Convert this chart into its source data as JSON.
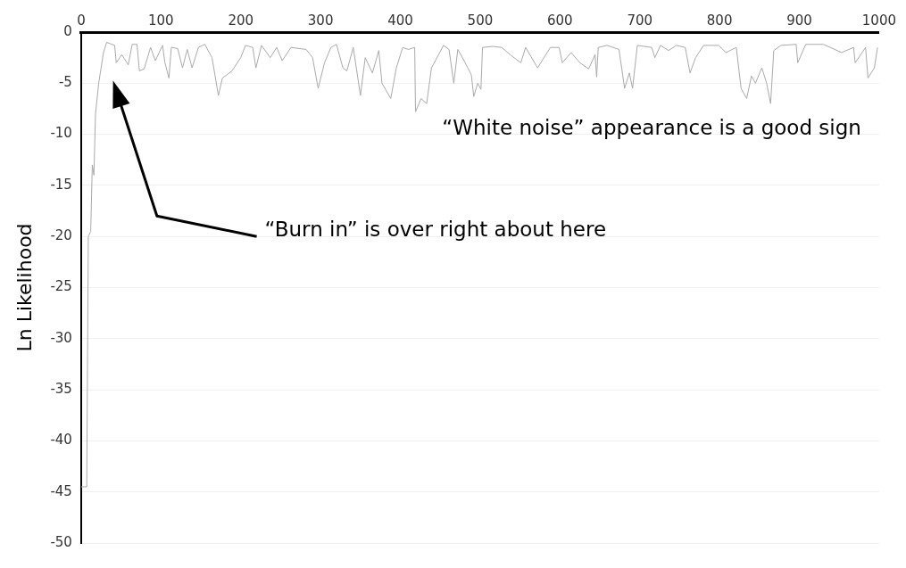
{
  "chart_data": {
    "type": "line",
    "ylabel": "Ln Likelihood",
    "x": [
      0,
      7,
      9,
      12,
      14,
      16,
      18,
      22,
      25,
      28,
      32,
      42,
      44,
      51,
      59,
      64,
      70,
      73,
      79,
      87,
      93,
      102,
      105,
      110,
      113,
      121,
      127,
      133,
      139,
      147,
      155,
      164,
      172,
      177,
      189,
      200,
      206,
      215,
      219,
      226,
      237,
      245,
      252,
      263,
      282,
      290,
      297,
      305,
      313,
      320,
      328,
      333,
      341,
      350,
      356,
      365,
      373,
      377,
      388,
      395,
      403,
      410,
      418,
      419,
      426,
      433,
      439,
      446,
      454,
      461,
      467,
      472,
      480,
      489,
      492,
      497,
      501,
      503,
      516,
      527,
      539,
      551,
      557,
      572,
      580,
      588,
      599,
      603,
      614,
      625,
      636,
      644,
      646,
      648,
      659,
      674,
      681,
      687,
      691,
      697,
      715,
      719,
      726,
      736,
      746,
      757,
      763,
      770,
      780,
      799,
      808,
      821,
      827,
      834,
      840,
      845,
      853,
      859,
      864,
      868,
      877,
      896,
      898,
      908,
      930,
      953,
      968,
      970,
      983,
      986,
      994,
      998
    ],
    "series": [
      {
        "color": "#aaaaaa",
        "values": [
          -44.5,
          -44.5,
          -20,
          -19.5,
          -13,
          -14,
          -8,
          -5,
          -3.5,
          -2,
          -1,
          -1.3,
          -3,
          -2.2,
          -3.2,
          -1.2,
          -1.2,
          -3.8,
          -3.6,
          -1.5,
          -2.8,
          -1.3,
          -3,
          -4.5,
          -1.5,
          -1.6,
          -3.5,
          -1.7,
          -3.5,
          -1.5,
          -1.2,
          -2.5,
          -6.2,
          -4.5,
          -3.8,
          -2.5,
          -1.3,
          -1.5,
          -3.5,
          -1.3,
          -2.5,
          -1.5,
          -2.8,
          -1.5,
          -1.7,
          -2.5,
          -5.5,
          -3,
          -1.5,
          -1.2,
          -3.5,
          -3.8,
          -1.5,
          -6.2,
          -2.5,
          -4,
          -1.8,
          -5,
          -6.5,
          -3.5,
          -1.5,
          -1.7,
          -1.5,
          -7.8,
          -6.5,
          -7,
          -3.5,
          -2.5,
          -1.3,
          -1.7,
          -5,
          -1.7,
          -2.8,
          -4.2,
          -6.3,
          -5,
          -5.6,
          -1.5,
          -1.4,
          -1.5,
          -2.3,
          -3,
          -1.5,
          -3.5,
          -2.5,
          -1.5,
          -1.5,
          -3,
          -2,
          -3,
          -3.6,
          -2.2,
          -4.4,
          -1.5,
          -1.3,
          -1.7,
          -5.5,
          -4,
          -5.5,
          -1.3,
          -1.5,
          -2.5,
          -1.3,
          -1.8,
          -1.3,
          -1.5,
          -4,
          -2.5,
          -1.3,
          -1.3,
          -2,
          -1.5,
          -5.5,
          -6.5,
          -4.3,
          -5,
          -3.5,
          -5,
          -7,
          -1.8,
          -1.3,
          -1.2,
          -3,
          -1.2,
          -1.2,
          -2,
          -1.5,
          -3,
          -1.5,
          -4.5,
          -3.5,
          -1.5
        ]
      }
    ],
    "xlim": [
      0,
      1000
    ],
    "xticks": [
      0,
      100,
      200,
      300,
      400,
      500,
      600,
      700,
      800,
      900,
      1000
    ],
    "ylim": [
      -50,
      0
    ],
    "yticks": [
      -50,
      -45,
      -40,
      -35,
      -30,
      -25,
      -20,
      -15,
      -10,
      -5,
      0
    ],
    "grid": "y",
    "marker": "none",
    "line_style": "solid",
    "annotations": [
      "“White noise” appearance is a good sign",
      "“Burn in” is over right about here"
    ]
  }
}
